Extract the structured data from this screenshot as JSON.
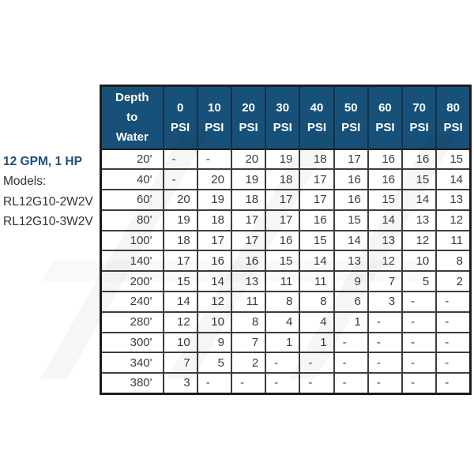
{
  "left_panel": {
    "title": "12 GPM, 1 HP",
    "models_label": "Models:",
    "models": [
      "RL12G10-2W2V",
      "RL12G10-3W2V"
    ]
  },
  "colors": {
    "header_bg": "#175078",
    "header_text": "#ffffff",
    "accent_blue": "#1F4E79",
    "border_inner": "#3d3d3d",
    "border_outer": "#1c1c1c",
    "cell_text": "#3b3b3b"
  },
  "chart_data": {
    "type": "table",
    "title": "12 GPM, 1 HP",
    "models": [
      "RL12G10-2W2V",
      "RL12G10-3W2V"
    ],
    "columns": [
      "Depth to Water",
      "0 PSI",
      "10 PSI",
      "20 PSI",
      "30 PSI",
      "40 PSI",
      "50 PSI",
      "60 PSI",
      "70 PSI",
      "80 PSI"
    ],
    "rows": [
      [
        "20'",
        "-",
        "-",
        "20",
        "19",
        "18",
        "17",
        "16",
        "16",
        "15"
      ],
      [
        "40'",
        "-",
        "20",
        "19",
        "18",
        "17",
        "16",
        "16",
        "15",
        "14"
      ],
      [
        "60'",
        "20",
        "19",
        "18",
        "17",
        "17",
        "16",
        "15",
        "14",
        "13"
      ],
      [
        "80'",
        "19",
        "18",
        "17",
        "17",
        "16",
        "15",
        "14",
        "13",
        "12"
      ],
      [
        "100'",
        "18",
        "17",
        "17",
        "16",
        "15",
        "14",
        "13",
        "12",
        "11"
      ],
      [
        "140'",
        "17",
        "16",
        "16",
        "15",
        "14",
        "13",
        "12",
        "10",
        "8"
      ],
      [
        "200'",
        "15",
        "14",
        "13",
        "11",
        "11",
        "9",
        "7",
        "5",
        "2"
      ],
      [
        "240'",
        "14",
        "12",
        "11",
        "8",
        "8",
        "6",
        "3",
        "-",
        "-"
      ],
      [
        "280'",
        "12",
        "10",
        "8",
        "4",
        "4",
        "1",
        "-",
        "-",
        "-"
      ],
      [
        "300'",
        "10",
        "9",
        "7",
        "1",
        "1",
        "-",
        "-",
        "-",
        "-"
      ],
      [
        "340'",
        "7",
        "5",
        "2",
        "-",
        "-",
        "-",
        "-",
        "-",
        "-"
      ],
      [
        "380'",
        "3",
        "-",
        "-",
        "-",
        "-",
        "-",
        "-",
        "-",
        "-"
      ]
    ]
  }
}
